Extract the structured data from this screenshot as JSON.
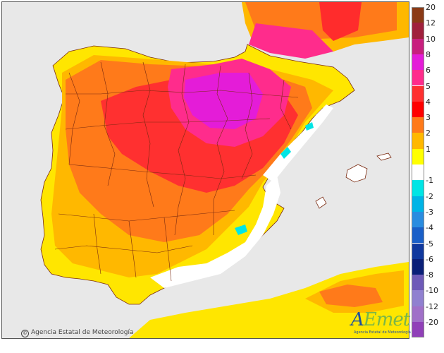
{
  "copyright": "Agencia Estatal de Meteorología",
  "logo": {
    "word_a": "A",
    "word_b": "Emet",
    "subtitle": "Agencia Estatal de Meteorología"
  },
  "legend": [
    {
      "label": "20",
      "color": "#8b3a16"
    },
    {
      "label": "12",
      "color": "#a0203c"
    },
    {
      "label": "10",
      "color": "#c81f7e"
    },
    {
      "label": "8",
      "color": "#e41cd8"
    },
    {
      "label": "6",
      "color": "#ff2c8c"
    },
    {
      "label": "5",
      "color": "#ff3030"
    },
    {
      "label": "4",
      "color": "#ff0000"
    },
    {
      "label": "3",
      "color": "#ff7a1a"
    },
    {
      "label": "2",
      "color": "#ffb800"
    },
    {
      "label": "1",
      "color": "#ffff00"
    },
    {
      "label": "",
      "color": "#ffffff"
    },
    {
      "label": "-1",
      "color": "#00e5e5"
    },
    {
      "label": "-2",
      "color": "#00b4e6"
    },
    {
      "label": "-3",
      "color": "#2a8ce0"
    },
    {
      "label": "-4",
      "color": "#1a5fc8"
    },
    {
      "label": "-5",
      "color": "#10389e"
    },
    {
      "label": "-6",
      "color": "#0a1f78"
    },
    {
      "label": "-8",
      "color": "#6e5ab8"
    },
    {
      "label": "-10",
      "color": "#9080d0"
    },
    {
      "label": "-12",
      "color": "#a070c8"
    },
    {
      "label": "-20",
      "color": "#9040b8"
    }
  ]
}
